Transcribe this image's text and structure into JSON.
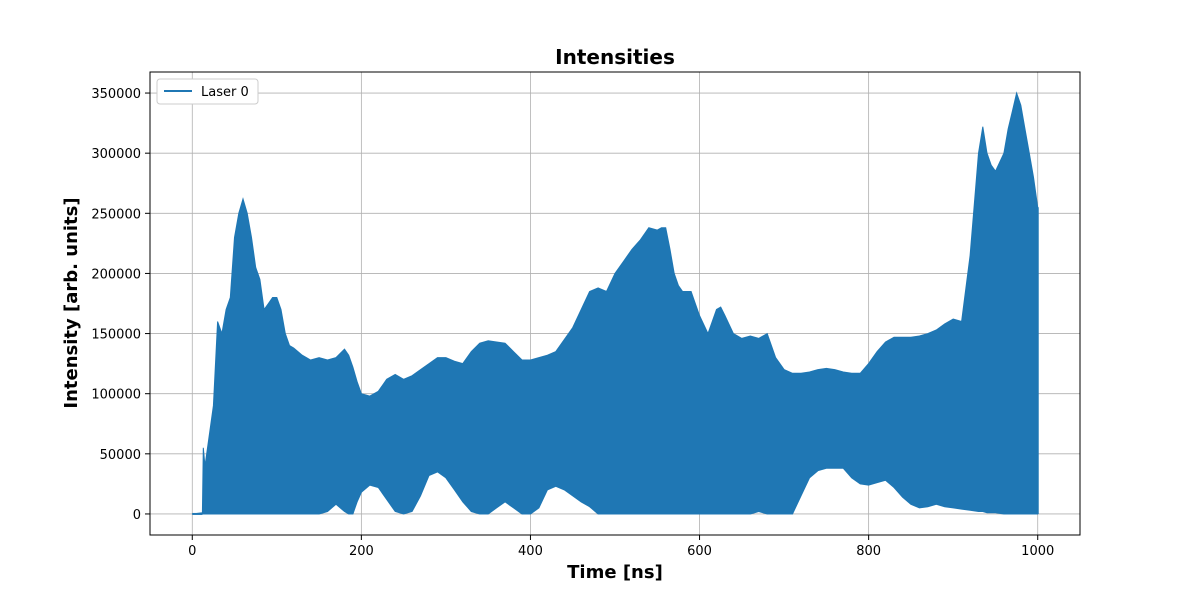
{
  "chart_data": {
    "type": "area",
    "title": "Intensities",
    "xlabel": "Time [ns]",
    "ylabel": "Intensity [arb. units]",
    "xlim": [
      -50,
      1050
    ],
    "ylim": [
      -17500,
      367500
    ],
    "xticks": [
      0,
      200,
      400,
      600,
      800,
      1000
    ],
    "yticks": [
      0,
      50000,
      100000,
      150000,
      200000,
      250000,
      300000,
      350000
    ],
    "grid": true,
    "legend_position": "top-left",
    "color": "#1f77b4",
    "series": [
      {
        "name": "Laser 0",
        "description_note": "Rapidly oscillating intensity; shown as upper and lower envelopes",
        "x": [
          0,
          12,
          13,
          15,
          20,
          25,
          30,
          35,
          40,
          45,
          50,
          55,
          60,
          65,
          70,
          75,
          80,
          85,
          90,
          95,
          100,
          105,
          110,
          115,
          120,
          130,
          140,
          150,
          160,
          170,
          180,
          185,
          190,
          195,
          200,
          210,
          220,
          230,
          240,
          250,
          260,
          270,
          280,
          290,
          300,
          310,
          320,
          330,
          340,
          350,
          360,
          370,
          380,
          390,
          400,
          410,
          420,
          430,
          440,
          450,
          460,
          470,
          480,
          490,
          500,
          510,
          520,
          530,
          540,
          550,
          555,
          560,
          565,
          570,
          575,
          580,
          590,
          600,
          610,
          620,
          625,
          630,
          640,
          650,
          660,
          670,
          680,
          690,
          700,
          710,
          720,
          730,
          740,
          750,
          760,
          770,
          780,
          790,
          800,
          810,
          820,
          830,
          840,
          850,
          860,
          870,
          880,
          890,
          900,
          910,
          920,
          930,
          935,
          940,
          945,
          950,
          960,
          965,
          970,
          975,
          980,
          985,
          990,
          995,
          1000
        ],
        "upper": [
          0,
          1000,
          55000,
          40000,
          65000,
          90000,
          160000,
          150000,
          170000,
          180000,
          230000,
          250000,
          262000,
          250000,
          230000,
          205000,
          195000,
          170000,
          175000,
          180000,
          180000,
          170000,
          150000,
          140000,
          138000,
          132000,
          128000,
          130000,
          128000,
          130000,
          137000,
          132000,
          122000,
          110000,
          100000,
          98000,
          102000,
          112000,
          116000,
          112000,
          115000,
          120000,
          125000,
          130000,
          130000,
          127000,
          125000,
          135000,
          142000,
          144000,
          143000,
          142000,
          135000,
          128000,
          128000,
          130000,
          132000,
          135000,
          145000,
          155000,
          170000,
          185000,
          188000,
          185000,
          200000,
          210000,
          220000,
          228000,
          238000,
          236000,
          238000,
          238000,
          220000,
          200000,
          190000,
          185000,
          185000,
          165000,
          150000,
          170000,
          172000,
          165000,
          150000,
          146000,
          148000,
          146000,
          150000,
          130000,
          120000,
          117000,
          117000,
          118000,
          120000,
          121000,
          120000,
          118000,
          117000,
          117000,
          125000,
          135000,
          143000,
          147000,
          147000,
          147000,
          148000,
          150000,
          153000,
          158000,
          162000,
          160000,
          215000,
          300000,
          322000,
          300000,
          290000,
          285000,
          300000,
          320000,
          335000,
          350000,
          340000,
          320000,
          300000,
          280000,
          255000
        ],
        "lower": [
          0,
          0,
          0,
          0,
          0,
          0,
          0,
          0,
          0,
          0,
          0,
          0,
          0,
          0,
          0,
          0,
          0,
          0,
          0,
          0,
          0,
          0,
          0,
          0,
          0,
          0,
          0,
          0,
          2000,
          8000,
          2000,
          0,
          0,
          10000,
          18000,
          24000,
          22000,
          12000,
          2000,
          0,
          2000,
          15000,
          32000,
          35000,
          30000,
          20000,
          10000,
          2000,
          0,
          0,
          5000,
          10000,
          5000,
          0,
          0,
          5000,
          20000,
          23000,
          20000,
          15000,
          10000,
          6000,
          0,
          0,
          0,
          0,
          0,
          0,
          0,
          0,
          0,
          0,
          0,
          0,
          0,
          0,
          0,
          0,
          0,
          0,
          0,
          0,
          0,
          0,
          0,
          2000,
          0,
          0,
          0,
          0,
          15000,
          30000,
          36000,
          38000,
          38000,
          38000,
          30000,
          25000,
          24000,
          26000,
          28000,
          22000,
          14000,
          8000,
          5000,
          6000,
          8000,
          6000,
          5000,
          4000,
          3000,
          2000,
          2000,
          1000,
          1000,
          1000,
          0,
          0,
          0,
          0,
          0,
          0,
          0,
          0,
          0
        ]
      }
    ]
  }
}
